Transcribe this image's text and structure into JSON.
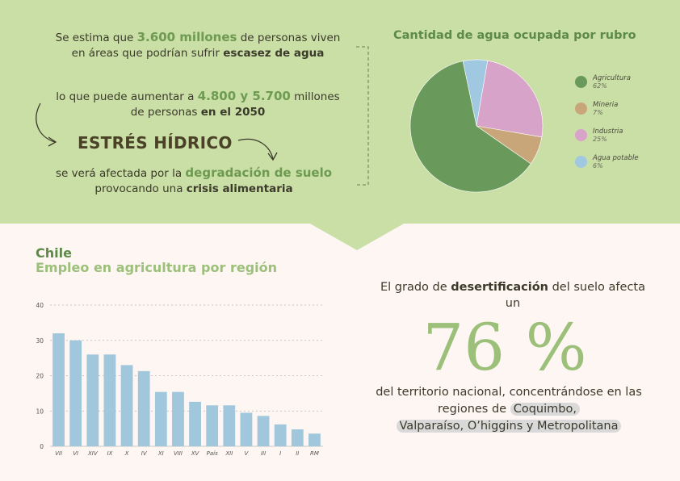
{
  "top_text": {
    "p1_a": "Se estima que ",
    "p1_b": "3.600 millones",
    "p1_c": " de personas viven en áreas que podrían sufrir ",
    "p1_d": "escasez de agua",
    "p2_a": "lo que puede aumentar a ",
    "p2_b": "4.800 y 5.700",
    "p2_c": " millones de personas ",
    "p2_d": "en el 2050",
    "estres": "ESTRÉS HÍDRICO",
    "p4_a": "se verá afectada por la ",
    "p4_b": "degradación de suelo",
    "p4_c": " provocando una ",
    "p4_d": "crisis alimentaria"
  },
  "bottom_text": {
    "chile": "Chile",
    "chile_sub": "Empleo en agricultura por región",
    "r1_a": "El grado de ",
    "r1_b": "desertificación",
    "r1_c": " del suelo afecta un",
    "big": "76 %",
    "r2_a": "del territorio nacional, concentrándose en las regiones de ",
    "r2_b": "Coquimbo,",
    "r2_c": "Valparaíso, O’higgins y Metropolitana"
  },
  "colors": {
    "top_bg": "#c9dfa6",
    "bottom_bg": "#fdf6f2",
    "accent_green": "#6e9a52",
    "light_green": "#9cc07a",
    "bar_blue": "#a1c7dc"
  },
  "chart_data": [
    {
      "type": "pie",
      "title": "Cantidad de agua ocupada por rubro",
      "slices": [
        {
          "label": "Agricultura",
          "value": 62,
          "display": "62%",
          "color": "#6a9a5b"
        },
        {
          "label": "Mineria",
          "value": 7,
          "display": "7%",
          "color": "#c9a67a"
        },
        {
          "label": "Industria",
          "value": 25,
          "display": "25%",
          "color": "#d8a3c9"
        },
        {
          "label": "Agua potable",
          "value": 6,
          "display": "6%",
          "color": "#a0c8e0"
        }
      ],
      "legend": "right"
    },
    {
      "type": "bar",
      "categories": [
        "VII",
        "VI",
        "XIV",
        "IX",
        "X",
        "IV",
        "XI",
        "VIII",
        "XV",
        "País",
        "XII",
        "V",
        "III",
        "I",
        "II",
        "RM"
      ],
      "values": [
        32,
        30,
        26,
        26,
        23,
        21.3,
        15.4,
        15.4,
        12.6,
        11.6,
        11.6,
        9.5,
        8.6,
        6.2,
        4.8,
        3.6
      ],
      "ylim": [
        0,
        40
      ],
      "yticks": [
        0,
        10,
        20,
        30,
        40
      ],
      "grid": true,
      "xlabel": "",
      "ylabel": ""
    }
  ]
}
